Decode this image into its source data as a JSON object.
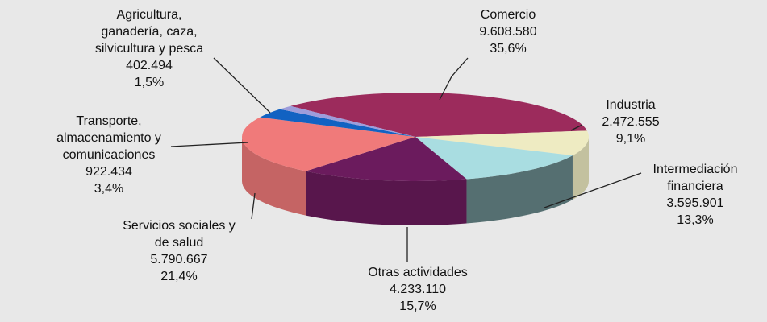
{
  "chart_data": {
    "type": "pie3d",
    "categories": [
      "Comercio",
      "Industria",
      "Intermediación\nfinanciera",
      "Otras actividades",
      "Servicios sociales y\nde salud",
      "Transporte,\nalmacenamiento y\ncomunicaciones",
      "Agricultura,\nganadería, caza,\nsilvicultura y pesca"
    ],
    "values": [
      9608580,
      2472555,
      3595901,
      4233110,
      5790667,
      922434,
      402494
    ],
    "value_labels": [
      "9.608.580",
      "2.472.555",
      "3.595.901",
      "4.233.110",
      "5.790.667",
      "922.434",
      "402.494"
    ],
    "percents": [
      35.6,
      9.1,
      13.3,
      15.7,
      21.4,
      3.4,
      1.5
    ],
    "percent_labels": [
      "35,6%",
      "9,1%",
      "13,3%",
      "15,7%",
      "21,4%",
      "3,4%",
      "1,5%"
    ],
    "colors": [
      "#9c2b5c",
      "#eeebc2",
      "#a9dde1",
      "#6b1b5d",
      "#f07a7a",
      "#1262c2",
      "#9d9ddb"
    ]
  }
}
